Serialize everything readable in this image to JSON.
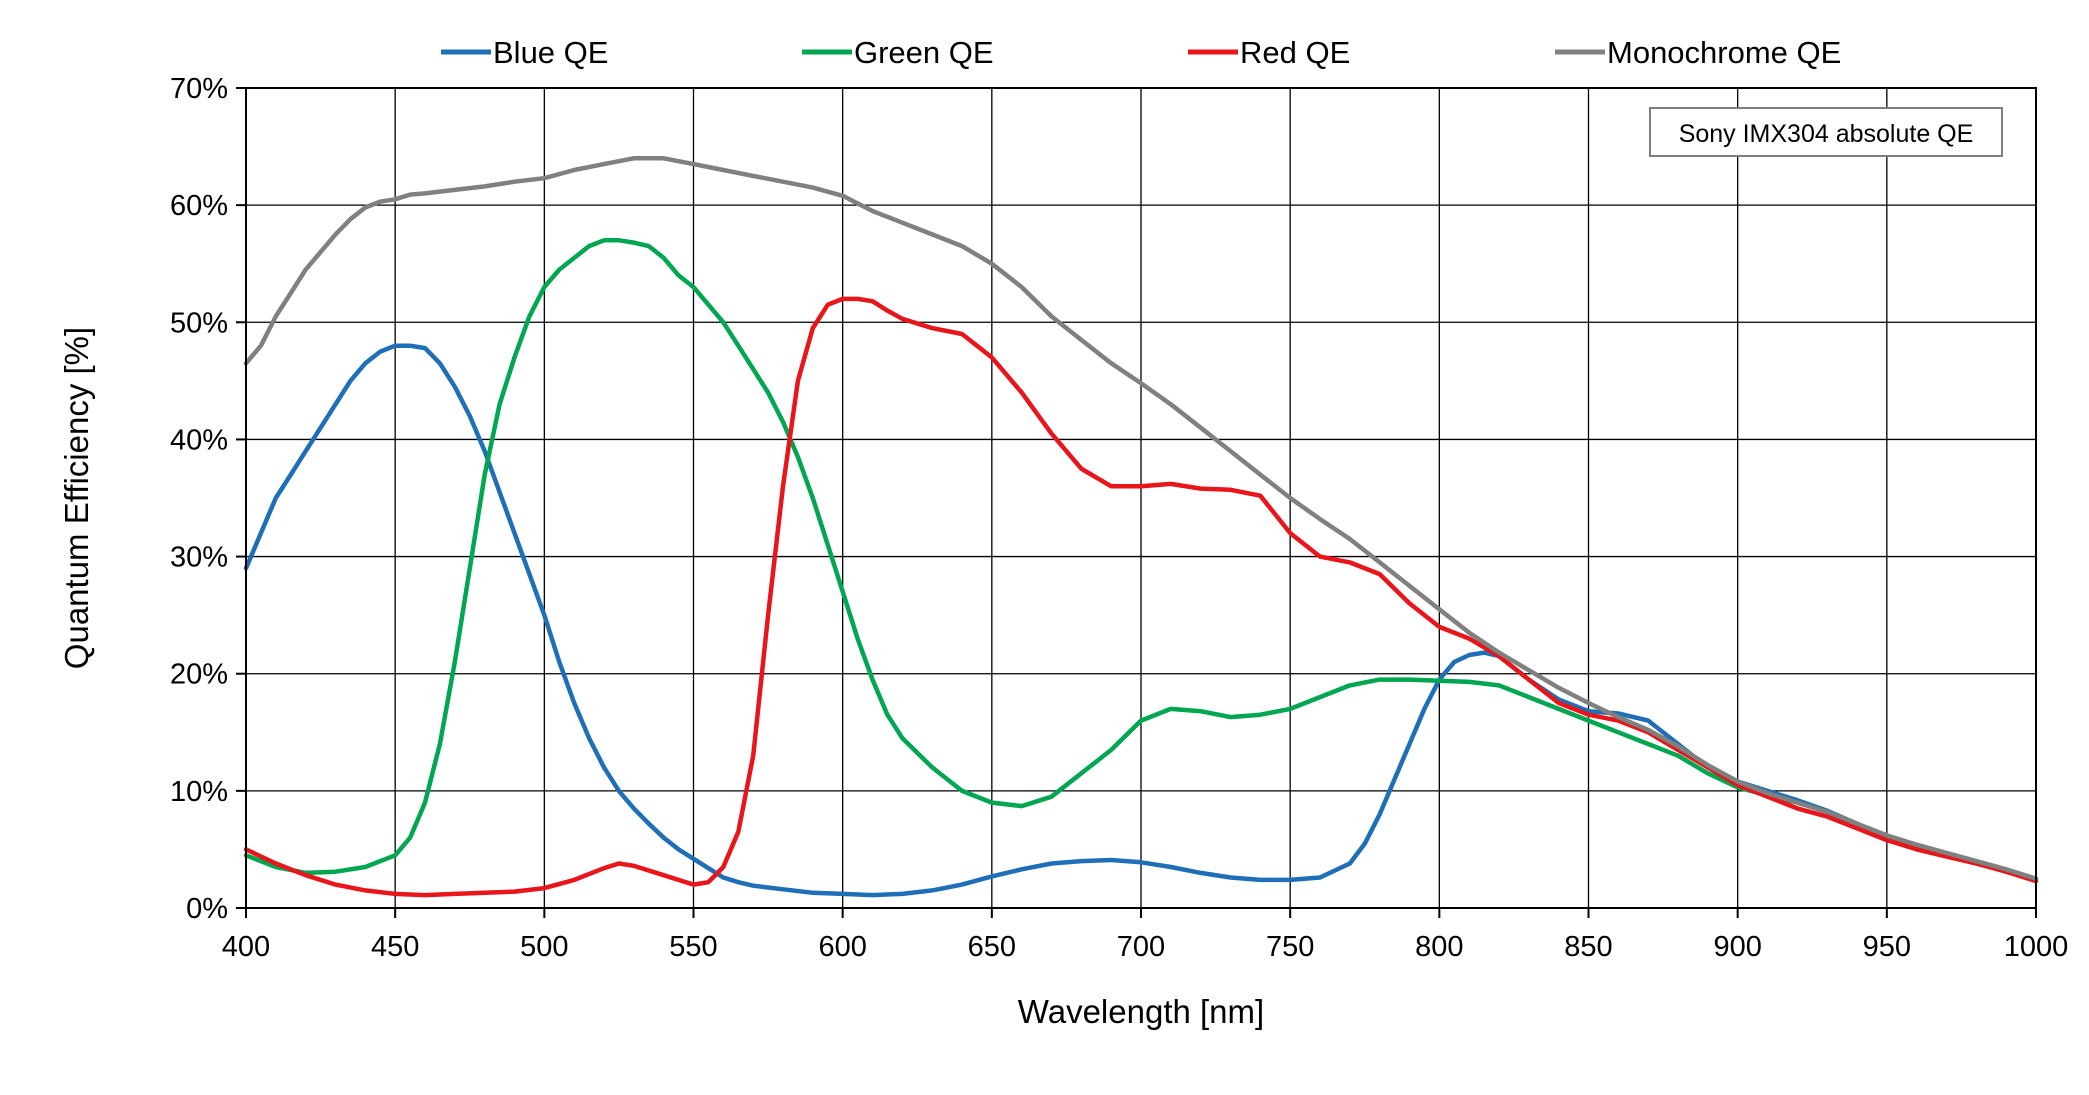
{
  "chart_data": {
    "type": "line",
    "title": "",
    "annotation": "Sony IMX304 absolute QE",
    "xlabel": "Wavelength [nm]",
    "ylabel": "Quantum Efficiency [%]",
    "xlim": [
      400,
      1000
    ],
    "ylim": [
      0,
      70
    ],
    "x_ticks": [
      "400",
      "450",
      "500",
      "550",
      "600",
      "650",
      "700",
      "750",
      "800",
      "850",
      "900",
      "950",
      "1000"
    ],
    "y_ticks": [
      "0%",
      "10%",
      "20%",
      "30%",
      "40%",
      "50%",
      "60%",
      "70%"
    ],
    "grid": true,
    "legend_position": "top",
    "series": [
      {
        "name": "Blue QE",
        "color": "#1f6fb8",
        "x": [
          400,
          405,
          410,
          415,
          420,
          425,
          430,
          435,
          440,
          445,
          450,
          455,
          460,
          465,
          470,
          475,
          480,
          485,
          490,
          495,
          500,
          505,
          510,
          515,
          520,
          525,
          530,
          535,
          540,
          545,
          550,
          555,
          560,
          565,
          570,
          580,
          590,
          600,
          610,
          620,
          630,
          640,
          650,
          660,
          670,
          680,
          690,
          700,
          710,
          720,
          730,
          740,
          750,
          760,
          770,
          775,
          780,
          785,
          790,
          795,
          800,
          805,
          810,
          815,
          820,
          830,
          840,
          850,
          860,
          870,
          880,
          890,
          900,
          910,
          920,
          930,
          940,
          950,
          960,
          970,
          980,
          990,
          1000
        ],
        "values": [
          29,
          32,
          35,
          37,
          39,
          41,
          43,
          45,
          46.5,
          47.5,
          48,
          48,
          47.8,
          46.5,
          44.5,
          42,
          39,
          35.5,
          32,
          28.5,
          25,
          21,
          17.5,
          14.5,
          12,
          10,
          8.5,
          7.2,
          6,
          5,
          4.2,
          3.4,
          2.6,
          2.2,
          1.9,
          1.6,
          1.3,
          1.2,
          1.1,
          1.2,
          1.5,
          2,
          2.7,
          3.3,
          3.8,
          4,
          4.1,
          3.9,
          3.5,
          3,
          2.6,
          2.4,
          2.4,
          2.6,
          3.8,
          5.5,
          8,
          11,
          14,
          17,
          19.5,
          21,
          21.6,
          21.8,
          21.5,
          19.5,
          17.8,
          16.8,
          16.6,
          16,
          14,
          12,
          10.8,
          10,
          9.2,
          8.3,
          7.2,
          6,
          5.2,
          4.5,
          3.8,
          3.2,
          2.5
        ]
      },
      {
        "name": "Green QE",
        "color": "#00a650",
        "x": [
          400,
          410,
          420,
          430,
          440,
          450,
          455,
          460,
          465,
          470,
          475,
          480,
          485,
          490,
          495,
          500,
          505,
          510,
          515,
          520,
          525,
          530,
          535,
          540,
          545,
          550,
          555,
          560,
          565,
          570,
          575,
          580,
          585,
          590,
          595,
          600,
          605,
          610,
          615,
          620,
          630,
          640,
          650,
          660,
          670,
          680,
          690,
          700,
          710,
          720,
          730,
          740,
          750,
          760,
          770,
          780,
          790,
          800,
          810,
          820,
          830,
          840,
          850,
          860,
          870,
          880,
          890,
          900,
          910,
          920,
          930,
          940,
          950,
          960,
          970,
          980,
          990,
          1000
        ],
        "values": [
          4.5,
          3.5,
          3,
          3.1,
          3.5,
          4.5,
          6,
          9,
          14,
          21,
          29,
          37,
          43,
          47,
          50.5,
          53,
          54.5,
          55.5,
          56.5,
          57,
          57,
          56.8,
          56.5,
          55.5,
          54,
          53,
          51.5,
          50,
          48,
          46,
          44,
          41.5,
          38.5,
          35,
          31,
          27,
          23,
          19.5,
          16.5,
          14.5,
          12,
          10,
          9,
          8.7,
          9.5,
          11.5,
          13.5,
          16,
          17,
          16.8,
          16.3,
          16.5,
          17,
          18,
          19,
          19.5,
          19.5,
          19.4,
          19.3,
          19,
          18,
          17,
          16,
          15,
          14,
          13,
          11.5,
          10.3,
          9.6,
          9,
          8.2,
          7,
          6,
          5.2,
          4.6,
          3.9,
          3.1,
          2.4
        ]
      },
      {
        "name": "Red QE",
        "color": "#e8161b",
        "x": [
          400,
          410,
          420,
          430,
          440,
          450,
          460,
          470,
          480,
          490,
          500,
          510,
          520,
          525,
          530,
          540,
          550,
          555,
          560,
          565,
          570,
          575,
          580,
          585,
          590,
          595,
          600,
          605,
          610,
          615,
          620,
          630,
          640,
          650,
          660,
          670,
          680,
          690,
          700,
          710,
          720,
          730,
          740,
          750,
          760,
          770,
          780,
          790,
          800,
          810,
          820,
          830,
          840,
          850,
          860,
          870,
          880,
          890,
          900,
          910,
          920,
          930,
          940,
          950,
          960,
          970,
          980,
          990,
          1000
        ],
        "values": [
          5,
          3.8,
          2.8,
          2,
          1.5,
          1.2,
          1.1,
          1.2,
          1.3,
          1.4,
          1.7,
          2.4,
          3.4,
          3.8,
          3.6,
          2.8,
          2,
          2.2,
          3.5,
          6.5,
          13,
          25,
          36,
          45,
          49.5,
          51.5,
          52,
          52,
          51.8,
          51,
          50.3,
          49.5,
          49,
          47,
          44,
          40.5,
          37.5,
          36,
          36,
          36.2,
          35.8,
          35.7,
          35.2,
          32,
          30,
          29.5,
          28.5,
          26,
          24,
          23,
          21.5,
          19.5,
          17.5,
          16.5,
          16,
          15,
          13.5,
          12,
          10.5,
          9.5,
          8.5,
          7.8,
          6.8,
          5.8,
          5,
          4.4,
          3.8,
          3.1,
          2.3
        ]
      },
      {
        "name": "Monochrome QE",
        "color": "#808080",
        "x": [
          400,
          405,
          410,
          415,
          420,
          425,
          430,
          435,
          440,
          445,
          450,
          455,
          460,
          470,
          480,
          490,
          500,
          510,
          520,
          530,
          540,
          550,
          560,
          570,
          580,
          590,
          600,
          610,
          620,
          630,
          640,
          650,
          660,
          670,
          680,
          690,
          700,
          710,
          720,
          730,
          740,
          750,
          760,
          770,
          780,
          790,
          800,
          810,
          820,
          830,
          840,
          850,
          860,
          870,
          880,
          890,
          900,
          910,
          920,
          930,
          940,
          950,
          960,
          970,
          980,
          990,
          1000
        ],
        "values": [
          46.5,
          48,
          50.5,
          52.5,
          54.5,
          56,
          57.5,
          58.8,
          59.8,
          60.3,
          60.5,
          60.9,
          61,
          61.3,
          61.6,
          62,
          62.3,
          63,
          63.5,
          64,
          64,
          63.5,
          63,
          62.5,
          62,
          61.5,
          60.8,
          59.5,
          58.5,
          57.5,
          56.5,
          55,
          53,
          50.5,
          48.5,
          46.5,
          44.8,
          43,
          41,
          39,
          37,
          35,
          33.2,
          31.5,
          29.5,
          27.5,
          25.5,
          23.5,
          21.8,
          20.3,
          18.8,
          17.5,
          16.3,
          15.2,
          13.8,
          12.2,
          10.8,
          9.8,
          9,
          8.2,
          7.2,
          6.2,
          5.4,
          4.7,
          4,
          3.3,
          2.5
        ]
      }
    ]
  }
}
